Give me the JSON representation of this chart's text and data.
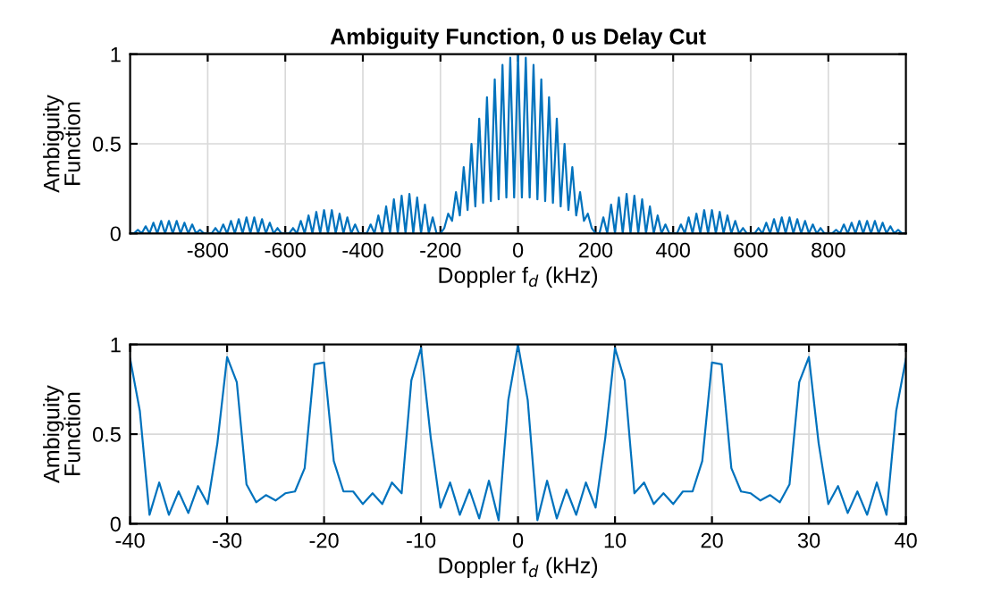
{
  "chart_data": [
    {
      "type": "line",
      "title": "Ambiguity Function, 0 us Delay Cut",
      "xlabel": "Doppler f$_{d}$ (kHz)",
      "ylabel": "Ambiguity\nFunction",
      "xlim": [
        -1000,
        1000
      ],
      "xticks": [
        -800,
        -600,
        -400,
        -200,
        0,
        200,
        400,
        600,
        800
      ],
      "ylim": [
        0,
        1
      ],
      "yticks": [
        0,
        0.5,
        1
      ],
      "grid": true,
      "series": [
        {
          "color": "#0072bd",
          "x": [
            -1000,
            -990,
            -980,
            -970,
            -960,
            -950,
            -940,
            -930,
            -920,
            -910,
            -900,
            -890,
            -880,
            -870,
            -860,
            -850,
            -840,
            -830,
            -820,
            -810,
            -800,
            -790,
            -780,
            -770,
            -760,
            -750,
            -740,
            -730,
            -720,
            -710,
            -700,
            -690,
            -680,
            -670,
            -660,
            -650,
            -640,
            -630,
            -620,
            -610,
            -600,
            -590,
            -580,
            -570,
            -560,
            -550,
            -540,
            -530,
            -520,
            -510,
            -500,
            -490,
            -480,
            -470,
            -460,
            -450,
            -440,
            -430,
            -420,
            -410,
            -400,
            -390,
            -380,
            -370,
            -360,
            -350,
            -340,
            -330,
            -320,
            -310,
            -300,
            -290,
            -280,
            -270,
            -260,
            -250,
            -240,
            -230,
            -220,
            -210,
            -200,
            -190,
            -180,
            -170,
            -160,
            -150,
            -140,
            -130,
            -120,
            -110,
            -100,
            -90,
            -80,
            -70,
            -60,
            -50,
            -40,
            -30,
            -20,
            -10,
            0,
            10,
            20,
            30,
            40,
            50,
            60,
            70,
            80,
            90,
            100,
            110,
            120,
            130,
            140,
            150,
            160,
            170,
            180,
            190,
            200,
            210,
            220,
            230,
            240,
            250,
            260,
            270,
            280,
            290,
            300,
            310,
            320,
            330,
            340,
            350,
            360,
            370,
            380,
            390,
            400,
            410,
            420,
            430,
            440,
            450,
            460,
            470,
            480,
            490,
            500,
            510,
            520,
            530,
            540,
            550,
            560,
            570,
            580,
            590,
            600,
            610,
            620,
            630,
            640,
            650,
            660,
            670,
            680,
            690,
            700,
            710,
            720,
            730,
            740,
            750,
            760,
            770,
            780,
            790,
            800,
            810,
            820,
            830,
            840,
            850,
            860,
            870,
            880,
            890,
            900,
            910,
            920,
            930,
            940,
            950,
            960,
            970,
            980,
            990,
            1000
          ],
          "values": [
            0,
            0,
            0.02,
            0,
            0.04,
            0,
            0.06,
            0,
            0.07,
            0,
            0.07,
            0,
            0.07,
            0,
            0.06,
            0,
            0.05,
            0,
            0.02,
            0,
            0,
            0,
            0.03,
            0,
            0.05,
            0,
            0.07,
            0,
            0.08,
            0,
            0.09,
            0,
            0.09,
            0,
            0.08,
            0,
            0.06,
            0,
            0.03,
            0,
            0,
            0,
            0.03,
            0,
            0.07,
            0,
            0.1,
            0,
            0.12,
            0,
            0.13,
            0,
            0.13,
            0,
            0.11,
            0,
            0.09,
            0,
            0.05,
            0,
            0,
            0,
            0.05,
            0,
            0.1,
            0,
            0.15,
            0,
            0.19,
            0,
            0.21,
            0,
            0.22,
            0,
            0.2,
            0,
            0.16,
            0,
            0.09,
            0,
            0,
            0.03,
            0.11,
            0.07,
            0.23,
            0.1,
            0.37,
            0.13,
            0.5,
            0.15,
            0.64,
            0.17,
            0.76,
            0.18,
            0.86,
            0.19,
            0.94,
            0.2,
            0.98,
            0.2,
            1,
            0.2,
            0.98,
            0.2,
            0.94,
            0.19,
            0.86,
            0.18,
            0.76,
            0.17,
            0.64,
            0.15,
            0.5,
            0.13,
            0.37,
            0.1,
            0.23,
            0.07,
            0.11,
            0.03,
            0,
            0,
            0.09,
            0,
            0.16,
            0,
            0.2,
            0,
            0.22,
            0,
            0.21,
            0,
            0.19,
            0,
            0.15,
            0,
            0.1,
            0,
            0.05,
            0,
            0,
            0,
            0.05,
            0,
            0.09,
            0,
            0.11,
            0,
            0.13,
            0,
            0.13,
            0,
            0.12,
            0,
            0.1,
            0,
            0.07,
            0,
            0.03,
            0,
            0,
            0,
            0.03,
            0,
            0.06,
            0,
            0.08,
            0,
            0.09,
            0,
            0.09,
            0,
            0.08,
            0,
            0.07,
            0,
            0.05,
            0,
            0.03,
            0,
            0,
            0,
            0.02,
            0,
            0.05,
            0,
            0.06,
            0,
            0.07,
            0,
            0.07,
            0,
            0.07,
            0,
            0.06,
            0,
            0.04,
            0,
            0.02,
            0,
            0
          ]
        }
      ]
    },
    {
      "type": "line",
      "xlabel": "Doppler f$_{d}$ (kHz)",
      "ylabel": "Ambiguity\nFunction",
      "xlim": [
        -40,
        40
      ],
      "xticks": [
        -40,
        -30,
        -20,
        -10,
        0,
        10,
        20,
        30,
        40
      ],
      "ylim": [
        0,
        1
      ],
      "yticks": [
        0,
        0.5,
        1
      ],
      "grid": true,
      "series": [
        {
          "color": "#0072bd",
          "x": [
            -40,
            -39,
            -38,
            -37,
            -36,
            -35,
            -34,
            -33,
            -32,
            -31,
            -30,
            -29,
            -28,
            -27,
            -26,
            -25,
            -24,
            -23,
            -22,
            -21,
            -20,
            -19,
            -18,
            -17,
            -16,
            -15,
            -14,
            -13,
            -12,
            -11,
            -10,
            -9,
            -8,
            -7,
            -6,
            -5,
            -4,
            -3,
            -2,
            -1,
            0,
            1,
            2,
            3,
            4,
            5,
            6,
            7,
            8,
            9,
            10,
            11,
            12,
            13,
            14,
            15,
            16,
            17,
            18,
            19,
            20,
            21,
            22,
            23,
            24,
            25,
            26,
            27,
            28,
            29,
            30,
            31,
            32,
            33,
            34,
            35,
            36,
            37,
            38,
            39,
            40
          ],
          "values": [
            0.92,
            0.63,
            0.05,
            0.23,
            0.05,
            0.18,
            0.06,
            0.21,
            0.11,
            0.45,
            0.93,
            0.79,
            0.22,
            0.12,
            0.16,
            0.13,
            0.17,
            0.18,
            0.31,
            0.89,
            0.9,
            0.35,
            0.18,
            0.18,
            0.11,
            0.17,
            0.11,
            0.23,
            0.17,
            0.8,
            0.98,
            0.48,
            0.09,
            0.23,
            0.05,
            0.19,
            0.03,
            0.24,
            0.02,
            0.69,
            1,
            0.69,
            0.02,
            0.24,
            0.03,
            0.19,
            0.05,
            0.23,
            0.09,
            0.48,
            0.98,
            0.8,
            0.17,
            0.23,
            0.11,
            0.17,
            0.11,
            0.18,
            0.18,
            0.35,
            0.9,
            0.89,
            0.31,
            0.18,
            0.17,
            0.13,
            0.16,
            0.12,
            0.22,
            0.79,
            0.93,
            0.45,
            0.11,
            0.21,
            0.06,
            0.18,
            0.05,
            0.23,
            0.05,
            0.63,
            0.92
          ]
        }
      ]
    }
  ]
}
